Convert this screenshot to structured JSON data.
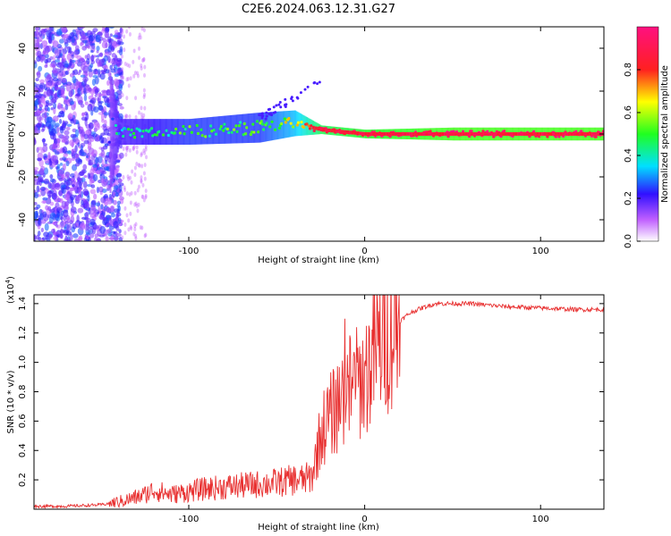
{
  "title": "C2E6.2024.063.12.31.G27",
  "chart_data": [
    {
      "type": "heatmap",
      "xlabel": "Height of straight line (km)",
      "ylabel": "Frequency (Hz)",
      "xlim": [
        -188,
        136
      ],
      "ylim": [
        -50,
        50
      ],
      "x_ticks": [
        -100,
        0,
        100
      ],
      "y_ticks": [
        -40,
        -20,
        0,
        20,
        40
      ],
      "colorbar": {
        "label": "Normalized spectral amplitude",
        "range": [
          0.0,
          1.0
        ],
        "ticks": [
          0.0,
          0.2,
          0.4,
          0.6,
          0.8
        ]
      },
      "description_points": [
        {
          "x": -150,
          "freq_center": 0,
          "freq_halfwidth": 50,
          "amplitude": 0.15
        },
        {
          "x": -140,
          "freq_center": 1,
          "freq_halfwidth": 6,
          "amplitude": 0.35
        },
        {
          "x": -100,
          "freq_center": 1,
          "freq_halfwidth": 6,
          "amplitude": 0.45
        },
        {
          "x": -60,
          "freq_center": 3,
          "freq_halfwidth": 7,
          "amplitude": 0.45
        },
        {
          "x": -40,
          "freq_center": 5,
          "freq_halfwidth": 6,
          "amplitude": 0.6
        },
        {
          "x": -25,
          "freq_center": 2,
          "freq_halfwidth": 2,
          "amplitude": 0.85
        },
        {
          "x": 0,
          "freq_center": 0,
          "freq_halfwidth": 2,
          "amplitude": 0.9
        },
        {
          "x": 50,
          "freq_center": 0,
          "freq_halfwidth": 3,
          "amplitude": 0.95
        },
        {
          "x": 136,
          "freq_center": 0,
          "freq_halfwidth": 3,
          "amplitude": 0.95
        }
      ]
    },
    {
      "type": "line",
      "xlabel": "Height of straight line (km)",
      "ylabel": "SNR (10 * v/v)",
      "y_multiplier_label": "(x10",
      "y_multiplier_exp": "4",
      "y_multiplier_close": ")",
      "xlim": [
        -188,
        136
      ],
      "ylim": [
        0.0,
        1.46
      ],
      "x_ticks": [
        -100,
        0,
        100
      ],
      "y_ticks": [
        "0.2",
        "0.4",
        "0.6",
        "0.8",
        "1.0",
        "1.2",
        "1.4"
      ],
      "series": [
        {
          "color": "#e83030",
          "x": [
            -188,
            -170,
            -150,
            -140,
            -130,
            -125,
            -120,
            -110,
            -100,
            -90,
            -80,
            -70,
            -60,
            -50,
            -40,
            -35,
            -30,
            -27,
            -24,
            -20,
            -15,
            -10,
            -5,
            0,
            5,
            10,
            15,
            20,
            25,
            30,
            40,
            60,
            80,
            100,
            120,
            136
          ],
          "y": [
            0.02,
            0.02,
            0.03,
            0.05,
            0.08,
            0.1,
            0.13,
            0.1,
            0.12,
            0.14,
            0.15,
            0.16,
            0.17,
            0.18,
            0.2,
            0.2,
            0.22,
            0.4,
            0.55,
            0.62,
            0.72,
            0.82,
            0.85,
            0.9,
            1.05,
            1.15,
            1.22,
            1.28,
            1.33,
            1.36,
            1.4,
            1.4,
            1.38,
            1.37,
            1.36,
            1.36
          ]
        }
      ]
    }
  ]
}
